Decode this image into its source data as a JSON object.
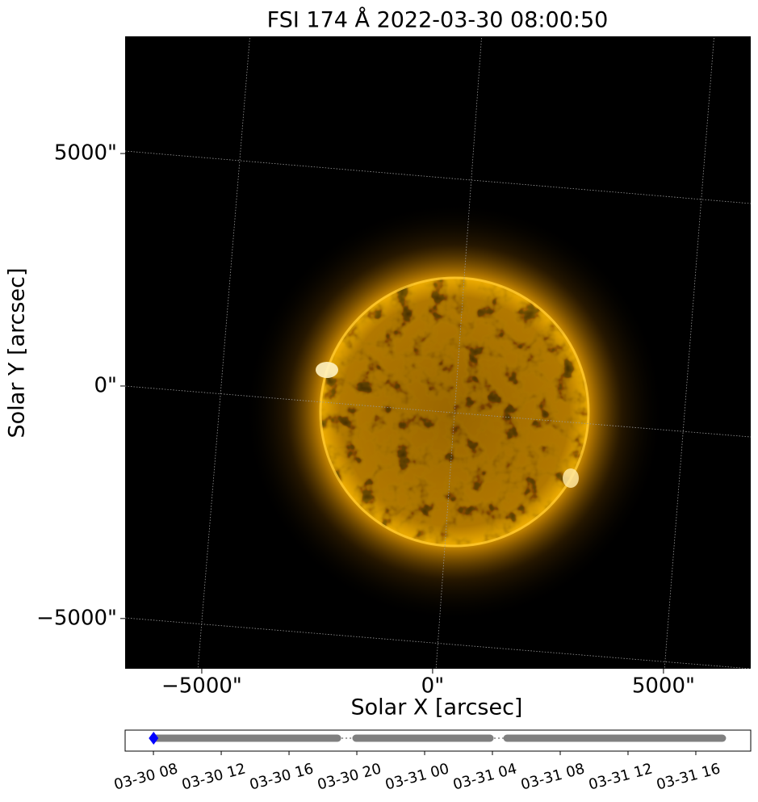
{
  "chart_data": [
    {
      "type": "image",
      "title": "FSI 174 Å 2022-03-30 08:00:50",
      "x_label": "Solar X [arcsec]",
      "y_label": "Solar Y [arcsec]",
      "xlim": [
        -6660,
        6890
      ],
      "ylim": [
        -6080,
        7520
      ],
      "xticks": [
        {
          "value": -5000,
          "label": "−5000\""
        },
        {
          "value": 0,
          "label": "0\""
        },
        {
          "value": 5000,
          "label": "5000\""
        }
      ],
      "yticks": [
        {
          "value": -5000,
          "label": "−5000\""
        },
        {
          "value": 0,
          "label": "0\""
        },
        {
          "value": 5000,
          "label": "5000\""
        }
      ],
      "grid": true,
      "color": "#f0a000"
    },
    {
      "type": "timeline",
      "xlim": [
        6.33,
        43.24
      ],
      "xticks": [
        {
          "value": 8,
          "label": "03-30 08"
        },
        {
          "value": 12,
          "label": "03-30 12"
        },
        {
          "value": 16,
          "label": "03-30 16"
        },
        {
          "value": 20,
          "label": "03-30 20"
        },
        {
          "value": 24,
          "label": "03-31 00"
        },
        {
          "value": 28,
          "label": "03-31 04"
        },
        {
          "value": 32,
          "label": "03-31 08"
        },
        {
          "value": 36,
          "label": "03-31 12"
        },
        {
          "value": 40,
          "label": "03-31 16"
        }
      ],
      "segments": [
        [
          8,
          18.86
        ],
        [
          19.95,
          27.86
        ],
        [
          28.86,
          41.57
        ]
      ],
      "color": "#808080",
      "current": 8.01,
      "current_color": "#0000ff"
    }
  ]
}
